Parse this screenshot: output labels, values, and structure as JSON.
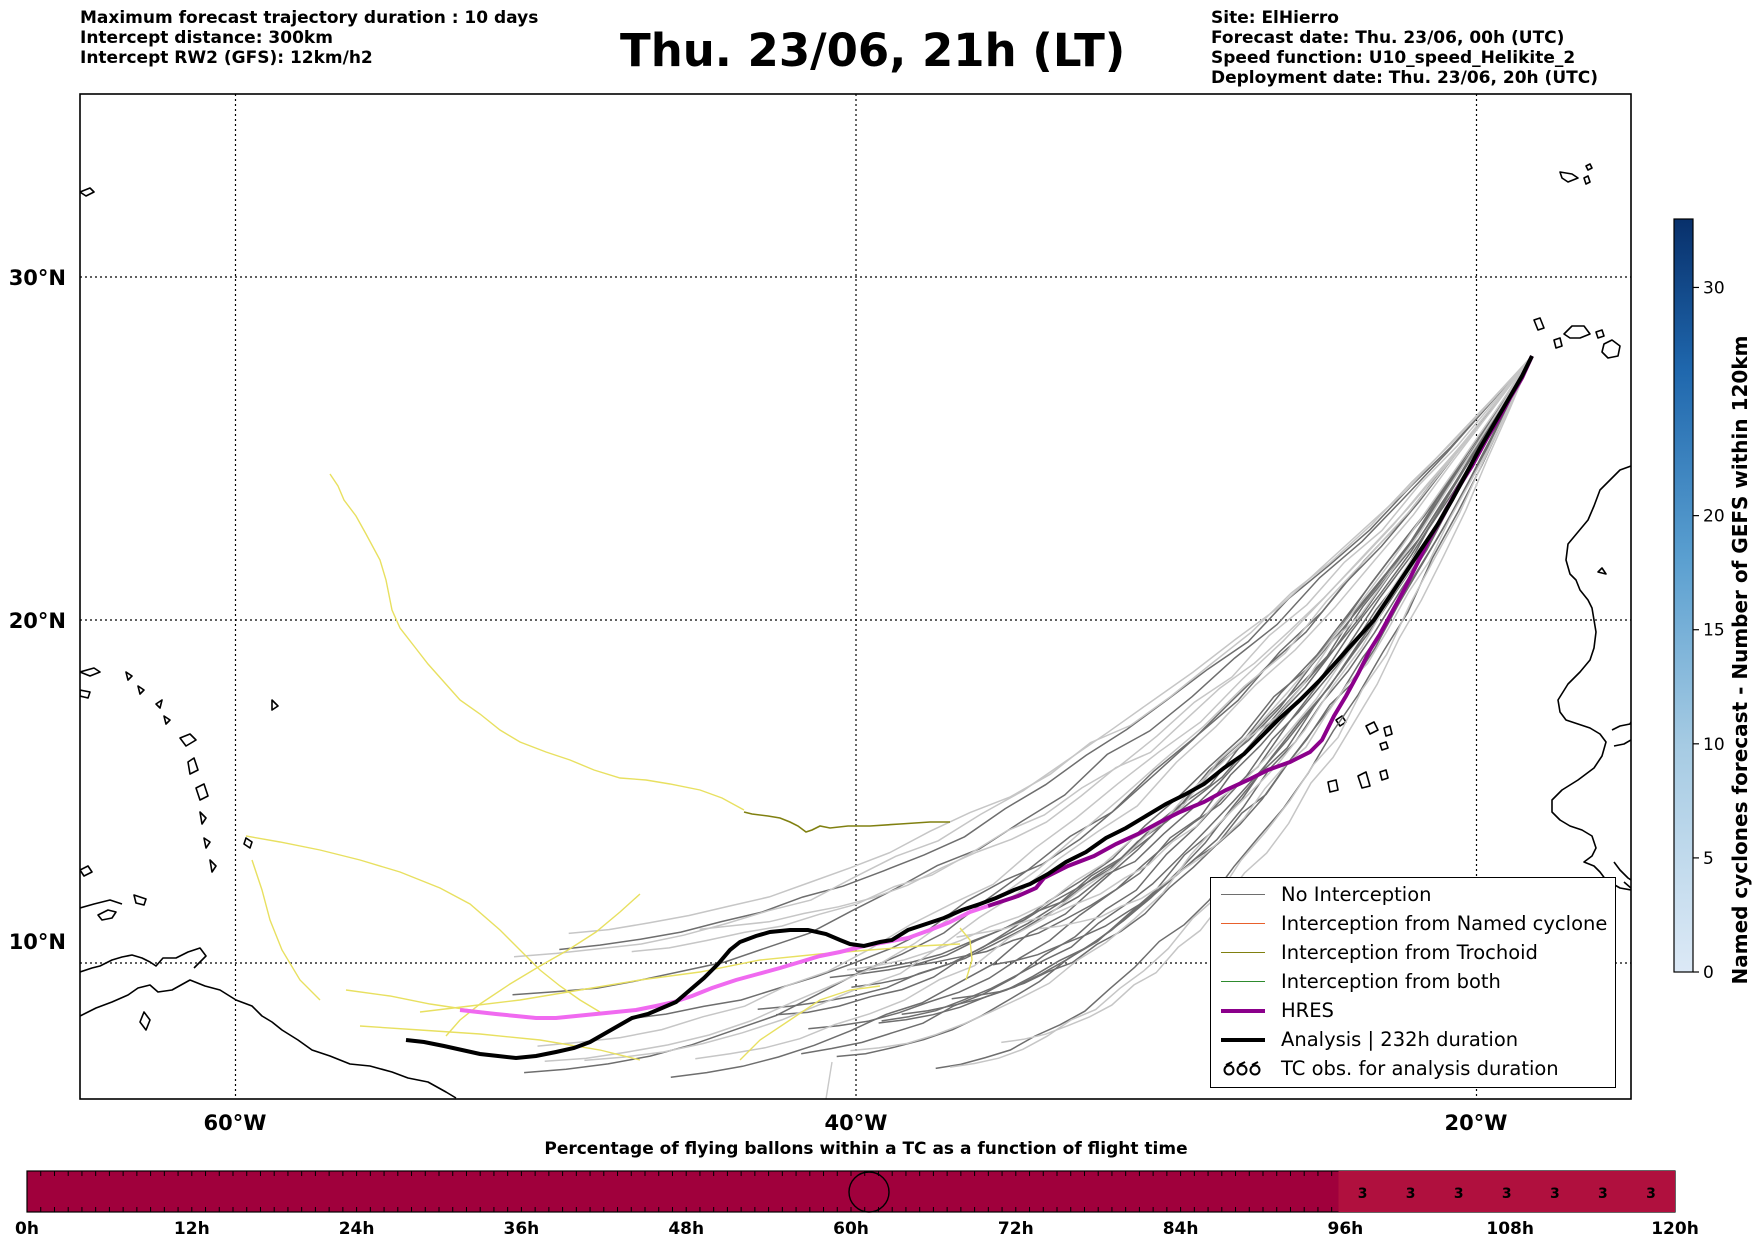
{
  "header": {
    "left_lines": [
      "Maximum forecast trajectory duration : 10 days",
      "Intercept distance: 300km",
      "Intercept RW2 (GFS):  12km/h2"
    ],
    "title": "Thu. 23/06, 21h (LT)",
    "right_lines": [
      "Site: ElHierro",
      "Forecast date: Thu. 23/06, 00h (UTC)",
      "Speed function: U10_speed_Helikite_2",
      "Deployment date: Thu. 23/06, 20h (UTC)"
    ]
  },
  "map": {
    "lon_ticks": [
      {
        "lon": -60,
        "label": "60°W"
      },
      {
        "lon": -40,
        "label": "40°W"
      },
      {
        "lon": -20,
        "label": "20°W"
      }
    ],
    "lat_ticks": [
      {
        "lat": 30,
        "label": "30°N"
      },
      {
        "lat": 20,
        "label": "20°N"
      },
      {
        "lat": 10,
        "label": "10°N"
      }
    ]
  },
  "legend": {
    "items": [
      {
        "label": "No Interception",
        "color": "#6e6e6e",
        "style": "thin"
      },
      {
        "label": "Interception from Named cyclone",
        "color": "#e8602c",
        "style": "thin"
      },
      {
        "label": "Interception from Trochoid",
        "color": "#808010",
        "style": "thin"
      },
      {
        "label": "Interception from both",
        "color": "#2e8b2e",
        "style": "thin"
      },
      {
        "label": "HRES",
        "color": "#8b008b",
        "style": "thick"
      },
      {
        "label": "Analysis | 232h duration",
        "color": "#000000",
        "style": "thick"
      },
      {
        "label": "TC obs. for analysis duration",
        "color": "#000000",
        "style": "cyclone"
      }
    ]
  },
  "colorbar": {
    "label": "Named cyclones forecast - Number of GEFS within 120km",
    "ticks": [
      0,
      5,
      10,
      15,
      20,
      30
    ],
    "max": 33
  },
  "timeline": {
    "caption": "Percentage of flying ballons within a TC as a function of flight time",
    "ticks": [
      "0h",
      "12h",
      "24h",
      "36h",
      "48h",
      "60h",
      "72h",
      "84h",
      "96h",
      "108h",
      "120h"
    ],
    "cell_values": [
      "3",
      "3",
      "3",
      "3",
      "3",
      "3",
      "3"
    ],
    "bar_color": "#a0003c",
    "cell_color": "#b0103e"
  }
}
